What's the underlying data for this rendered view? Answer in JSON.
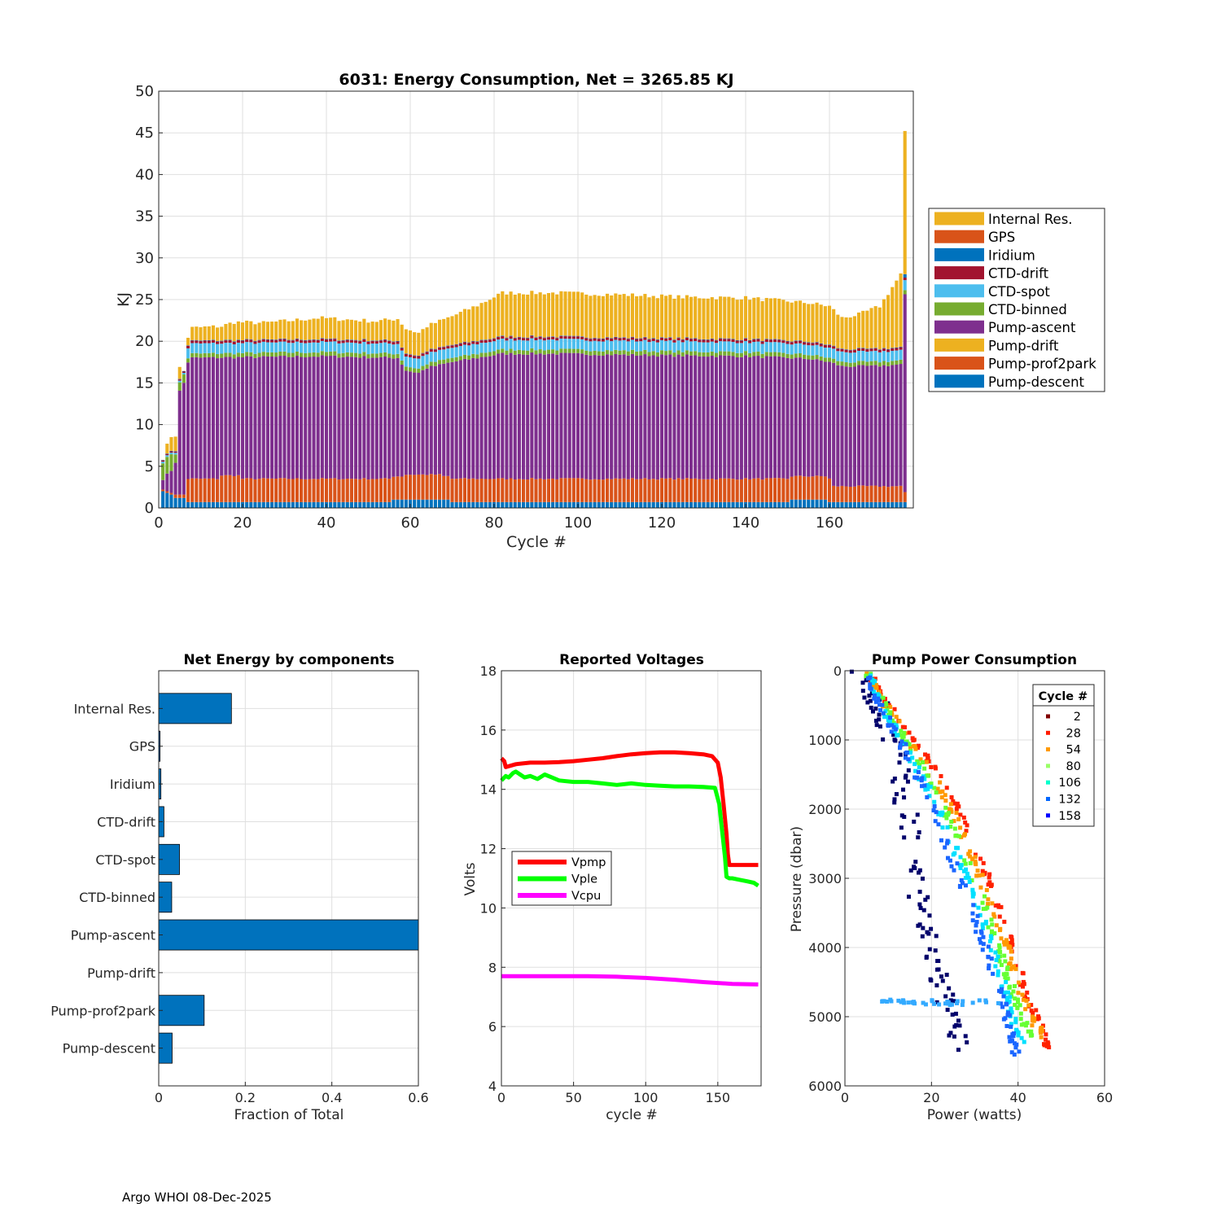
{
  "footer": "Argo WHOI 08-Dec-2025",
  "chart_data": [
    {
      "id": "energy",
      "type": "bar",
      "stacked": true,
      "title": "6031: Energy Consumption,  Net = 3265.85 KJ",
      "xlabel": "Cycle #",
      "ylabel": "KJ",
      "xlim": [
        0,
        180
      ],
      "ylim": [
        0,
        50
      ],
      "xticks": [
        0,
        20,
        40,
        60,
        80,
        100,
        120,
        140,
        160
      ],
      "yticks": [
        0,
        5,
        10,
        15,
        20,
        25,
        30,
        35,
        40,
        45,
        50
      ],
      "components": [
        {
          "name": "Pump-descent",
          "color": "#0072bd"
        },
        {
          "name": "Pump-prof2park",
          "color": "#d95319"
        },
        {
          "name": "Pump-drift",
          "color": "#edb120"
        },
        {
          "name": "Pump-ascent",
          "color": "#7e2f8e"
        },
        {
          "name": "CTD-binned",
          "color": "#77ac30"
        },
        {
          "name": "CTD-spot",
          "color": "#4dbeee"
        },
        {
          "name": "CTD-drift",
          "color": "#a2142f"
        },
        {
          "name": "Iridium",
          "color": "#0072bd"
        },
        {
          "name": "GPS",
          "color": "#d95319"
        },
        {
          "name": "Internal Res.",
          "color": "#edb120"
        }
      ],
      "legend": [
        "Internal Res.",
        "GPS",
        "Iridium",
        "CTD-drift",
        "CTD-spot",
        "CTD-binned",
        "Pump-ascent",
        "Pump-drift",
        "Pump-prof2park",
        "Pump-descent"
      ],
      "legend_location": "east-outside",
      "cycles": [
        1,
        178
      ],
      "total_profile_knots": [
        [
          1,
          6.0
        ],
        [
          2,
          7.5
        ],
        [
          3,
          8.6
        ],
        [
          4,
          8.7
        ],
        [
          5,
          16.8
        ],
        [
          6,
          16.4
        ],
        [
          7,
          20.5
        ],
        [
          8,
          21.6
        ],
        [
          15,
          21.8
        ],
        [
          18,
          22.3
        ],
        [
          25,
          22.2
        ],
        [
          32,
          22.5
        ],
        [
          38,
          22.8
        ],
        [
          45,
          22.6
        ],
        [
          52,
          22.4
        ],
        [
          57,
          22.7
        ],
        [
          59,
          21.5
        ],
        [
          62,
          21.0
        ],
        [
          64,
          21.8
        ],
        [
          70,
          23.0
        ],
        [
          76,
          24.3
        ],
        [
          82,
          25.8
        ],
        [
          95,
          25.8
        ],
        [
          110,
          25.6
        ],
        [
          125,
          25.3
        ],
        [
          140,
          25.2
        ],
        [
          155,
          24.6
        ],
        [
          160,
          24.2
        ],
        [
          163,
          22.8
        ],
        [
          167,
          23.2
        ],
        [
          172,
          24.2
        ],
        [
          175,
          26.5
        ],
        [
          177,
          28.0
        ],
        [
          178,
          45.0
        ]
      ],
      "ascent_profile_knots": [
        [
          1,
          3.5
        ],
        [
          3,
          4.5
        ],
        [
          4,
          5.5
        ],
        [
          5,
          14.0
        ],
        [
          6,
          15.0
        ],
        [
          7,
          17.5
        ],
        [
          8,
          18.0
        ],
        [
          40,
          18.2
        ],
        [
          57,
          18.0
        ],
        [
          59,
          16.5
        ],
        [
          62,
          16.2
        ],
        [
          64,
          16.8
        ],
        [
          70,
          17.5
        ],
        [
          82,
          18.5
        ],
        [
          95,
          18.5
        ],
        [
          120,
          18.3
        ],
        [
          140,
          18.2
        ],
        [
          155,
          17.9
        ],
        [
          160,
          17.5
        ],
        [
          163,
          17.0
        ],
        [
          170,
          17.0
        ],
        [
          177,
          17.2
        ],
        [
          178,
          25.5
        ]
      ],
      "descent_kj_typical": 0.7,
      "prof2park_kj_typical": 2.8,
      "ctd_binned_kj_typical": 0.5,
      "ctd_spot_kj_typical": 1.2,
      "ctd_drift_kj_typical": 0.3
    },
    {
      "id": "net-energy",
      "type": "barh",
      "title": "Net Energy by components",
      "xlabel": "Fraction of Total",
      "xlim": [
        0,
        0.6
      ],
      "xticks": [
        0,
        0.2,
        0.4,
        0.6
      ],
      "color": "#0072bd",
      "categories": [
        "Internal Res.",
        "GPS",
        "Iridium",
        "CTD-drift",
        "CTD-spot",
        "CTD-binned",
        "Pump-ascent",
        "Pump-drift",
        "Pump-prof2park",
        "Pump-descent"
      ],
      "values": [
        0.168,
        0.003,
        0.005,
        0.012,
        0.048,
        0.03,
        0.62,
        0.0,
        0.105,
        0.031
      ]
    },
    {
      "id": "voltages",
      "type": "line",
      "title": "Reported Voltages",
      "xlabel": "cycle #",
      "ylabel": "Volts",
      "xlim": [
        0,
        180
      ],
      "ylim": [
        4,
        18
      ],
      "xticks": [
        0,
        50,
        100,
        150
      ],
      "yticks": [
        4,
        6,
        8,
        10,
        12,
        14,
        16,
        18
      ],
      "legend_location": "west",
      "series": [
        {
          "name": "Vpmp",
          "color": "#ff0000",
          "x": [
            0,
            2,
            3,
            10,
            20,
            30,
            40,
            50,
            60,
            70,
            80,
            90,
            100,
            110,
            120,
            130,
            140,
            146,
            150,
            152,
            154,
            156,
            157,
            158,
            160,
            170,
            178
          ],
          "y": [
            15.05,
            14.95,
            14.75,
            14.85,
            14.9,
            14.9,
            14.92,
            14.95,
            15.0,
            15.05,
            15.12,
            15.18,
            15.22,
            15.25,
            15.25,
            15.22,
            15.18,
            15.12,
            14.9,
            14.4,
            13.5,
            12.5,
            11.8,
            11.45,
            11.45,
            11.45,
            11.45
          ]
        },
        {
          "name": "Vple",
          "color": "#00ff00",
          "x": [
            0,
            3,
            5,
            8,
            10,
            13,
            16,
            20,
            25,
            30,
            35,
            40,
            50,
            60,
            70,
            80,
            90,
            100,
            110,
            120,
            130,
            140,
            148,
            151,
            153,
            155,
            156,
            158,
            160,
            165,
            170,
            175,
            178
          ],
          "y": [
            14.3,
            14.45,
            14.4,
            14.55,
            14.6,
            14.5,
            14.4,
            14.45,
            14.35,
            14.5,
            14.4,
            14.3,
            14.25,
            14.25,
            14.2,
            14.15,
            14.2,
            14.15,
            14.12,
            14.1,
            14.1,
            14.08,
            14.05,
            13.5,
            12.6,
            11.7,
            11.05,
            11.0,
            11.0,
            10.95,
            10.9,
            10.85,
            10.75
          ]
        },
        {
          "name": "Vcpu",
          "color": "#ff00ff",
          "x": [
            0,
            20,
            40,
            60,
            80,
            100,
            120,
            140,
            160,
            178
          ],
          "y": [
            7.7,
            7.7,
            7.7,
            7.7,
            7.68,
            7.64,
            7.58,
            7.5,
            7.44,
            7.42
          ]
        }
      ]
    },
    {
      "id": "pump-power",
      "type": "scatter",
      "title": "Pump Power Consumption",
      "xlabel": "Power (watts)",
      "ylabel": "Pressure (dbar)",
      "xlim": [
        0,
        60
      ],
      "ylim": [
        0,
        6000
      ],
      "y_reversed": true,
      "xticks": [
        0,
        20,
        40,
        60
      ],
      "yticks": [
        0,
        1000,
        2000,
        3000,
        4000,
        5000,
        6000
      ],
      "legend_title": "Cycle #",
      "legend_location": "top-right",
      "colormap": "jet",
      "cycle_range": [
        2,
        178
      ],
      "legend_entries": [
        {
          "label": "2",
          "color": "#800000"
        },
        {
          "label": "28",
          "color": "#ff1a00"
        },
        {
          "label": "54",
          "color": "#ff9900"
        },
        {
          "label": "80",
          "color": "#99ff66"
        },
        {
          "label": "106",
          "color": "#00ffcc"
        },
        {
          "label": "132",
          "color": "#0066ff"
        },
        {
          "label": "158",
          "color": "#0000ff"
        }
      ],
      "series": [
        {
          "name": "early cycles",
          "color": "#00006b",
          "x": [
            4,
            8,
            11,
            13,
            14,
            16,
            18,
            20,
            24,
            28
          ],
          "y": [
            0,
            500,
            1000,
            1500,
            2000,
            2800,
            3500,
            4200,
            5000,
            5500
          ],
          "jitter_watts": 2.6
        },
        {
          "name": "red cycles",
          "color": "#ff2200",
          "x": [
            5,
            10,
            16,
            22,
            28,
            33,
            38,
            42,
            45,
            47
          ],
          "y": [
            0,
            500,
            1000,
            1500,
            2200,
            3000,
            3800,
            4700,
            5100,
            5500
          ],
          "jitter_watts": 0.7
        },
        {
          "name": "orange cycles",
          "color": "#ff9900",
          "x": [
            5,
            10,
            15,
            21,
            27,
            32,
            37,
            40,
            43,
            46
          ],
          "y": [
            0,
            550,
            1050,
            1600,
            2300,
            3100,
            3900,
            4500,
            5000,
            5300
          ],
          "jitter_watts": 0.8
        },
        {
          "name": "green cycles",
          "color": "#66ff33",
          "x": [
            5,
            9.5,
            15,
            20.5,
            26,
            31,
            35,
            38,
            41,
            43
          ],
          "y": [
            0,
            550,
            1100,
            1700,
            2400,
            3200,
            3900,
            4500,
            5000,
            5300
          ],
          "jitter_watts": 0.8
        },
        {
          "name": "cyan cycles",
          "color": "#00e0ff",
          "x": [
            5,
            9,
            14.5,
            20,
            25,
            30,
            34,
            37,
            39,
            41
          ],
          "y": [
            0,
            550,
            1150,
            1800,
            2500,
            3300,
            4000,
            4600,
            5100,
            5400
          ],
          "jitter_watts": 0.8
        },
        {
          "name": "blue cycles",
          "color": "#1a66ff",
          "x": [
            5,
            8.5,
            14,
            19,
            24,
            29,
            33,
            36,
            38,
            40
          ],
          "y": [
            0,
            550,
            1150,
            1800,
            2600,
            3400,
            4100,
            4700,
            5200,
            5600
          ],
          "jitter_watts": 0.9
        },
        {
          "name": "horizontal cluster",
          "color": "#33aaff",
          "x": [
            8,
            12,
            16,
            20,
            24,
            28,
            32,
            36
          ],
          "y": [
            4800,
            4780,
            4800,
            4790,
            4810,
            4800,
            4790,
            4800
          ],
          "jitter_watts": 0.8
        }
      ]
    }
  ]
}
